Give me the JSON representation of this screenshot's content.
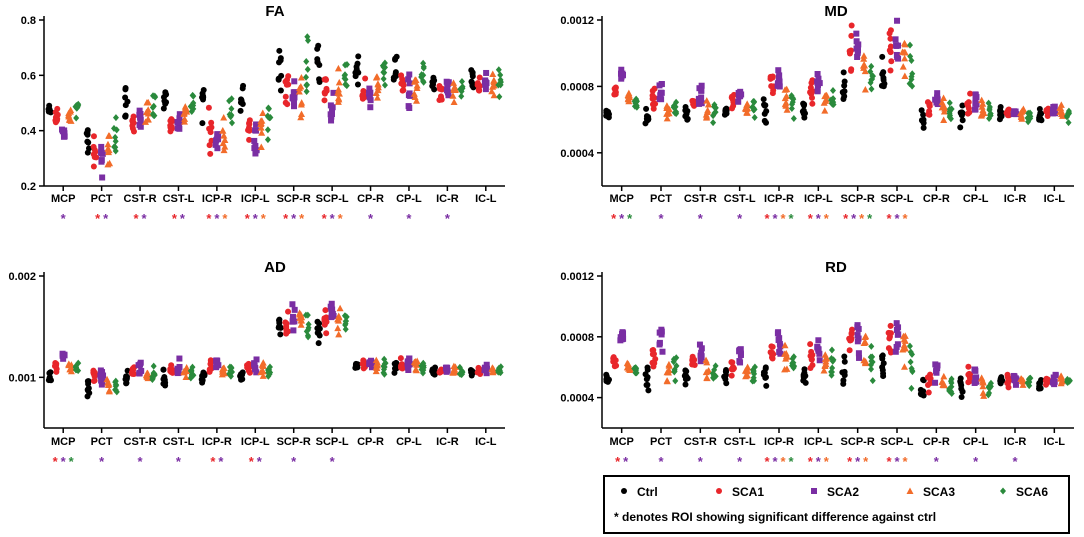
{
  "colors": {
    "Ctrl": "#000000",
    "SCA1": "#e8262b",
    "SCA2": "#7a2ea3",
    "SCA3": "#f26c2a",
    "SCA6": "#2a8a3c"
  },
  "groups": [
    "Ctrl",
    "SCA1",
    "SCA2",
    "SCA3",
    "SCA6"
  ],
  "legend": {
    "entries": [
      "Ctrl",
      "SCA1",
      "SCA2",
      "SCA3",
      "SCA6"
    ],
    "note": "* denotes ROI showing significant difference against ctrl"
  },
  "chart_data": [
    {
      "type": "scatter",
      "title": "FA",
      "categories": [
        "MCP",
        "PCT",
        "CST-R",
        "CST-L",
        "ICP-R",
        "ICP-L",
        "SCP-R",
        "SCP-L",
        "CP-R",
        "CP-L",
        "IC-R",
        "IC-L"
      ],
      "ylim": [
        0.2,
        0.8
      ],
      "yticks": [
        "0.2",
        "0.4",
        "0.6",
        "0.8"
      ],
      "tick_values": [
        0.2,
        0.4,
        0.6,
        0.8
      ],
      "centers": [
        [
          0.48,
          0.45,
          0.39,
          0.46,
          0.48
        ],
        [
          0.36,
          0.33,
          0.31,
          0.35,
          0.38
        ],
        [
          0.51,
          0.44,
          0.43,
          0.47,
          0.49
        ],
        [
          0.51,
          0.44,
          0.43,
          0.47,
          0.5
        ],
        [
          0.51,
          0.39,
          0.38,
          0.39,
          0.46
        ],
        [
          0.5,
          0.39,
          0.38,
          0.39,
          0.45
        ],
        [
          0.63,
          0.54,
          0.51,
          0.54,
          0.63
        ],
        [
          0.63,
          0.55,
          0.49,
          0.55,
          0.62
        ],
        [
          0.63,
          0.54,
          0.51,
          0.55,
          0.6
        ],
        [
          0.63,
          0.56,
          0.54,
          0.57,
          0.6
        ],
        [
          0.57,
          0.55,
          0.55,
          0.55,
          0.56
        ],
        [
          0.58,
          0.57,
          0.57,
          0.56,
          0.57
        ]
      ],
      "spreads": [
        0.02,
        0.05,
        0.04,
        0.03,
        0.06,
        0.05,
        0.06,
        0.06,
        0.05,
        0.04,
        0.03,
        0.03
      ],
      "stars": [
        [
          "SCA2"
        ],
        [
          "SCA1",
          "SCA2"
        ],
        [
          "SCA1",
          "SCA2"
        ],
        [
          "SCA1",
          "SCA2"
        ],
        [
          "SCA1",
          "SCA2",
          "SCA3"
        ],
        [
          "SCA1",
          "SCA2",
          "SCA3"
        ],
        [
          "SCA1",
          "SCA2",
          "SCA3"
        ],
        [
          "SCA1",
          "SCA2",
          "SCA3"
        ],
        [
          "SCA2"
        ],
        [
          "SCA2"
        ],
        [
          "SCA2"
        ],
        []
      ]
    },
    {
      "type": "scatter",
      "title": "MD",
      "categories": [
        "MCP",
        "PCT",
        "CST-R",
        "CST-L",
        "ICP-R",
        "ICP-L",
        "SCP-R",
        "SCP-L",
        "CP-R",
        "CP-L",
        "IC-R",
        "IC-L"
      ],
      "ylim": [
        0.0002,
        0.0012
      ],
      "yticks": [
        "0.0004",
        "0.0008",
        "0.0012"
      ],
      "tick_values": [
        0.0004,
        0.0008,
        0.0012
      ],
      "centers": [
        [
          0.00063,
          0.00078,
          0.00087,
          0.00074,
          0.00071
        ],
        [
          0.0006,
          0.00072,
          0.00078,
          0.00065,
          0.00067
        ],
        [
          0.00063,
          0.00072,
          0.00076,
          0.00066,
          0.00067
        ],
        [
          0.00063,
          0.00071,
          0.00077,
          0.00066,
          0.00068
        ],
        [
          0.00066,
          0.00079,
          0.00084,
          0.00072,
          0.0007
        ],
        [
          0.00066,
          0.00078,
          0.00082,
          0.00072,
          0.00071
        ],
        [
          0.00081,
          0.001,
          0.001,
          0.00092,
          0.00088
        ],
        [
          0.00086,
          0.00102,
          0.00103,
          0.00097,
          0.00092
        ],
        [
          0.0006,
          0.00067,
          0.00074,
          0.00066,
          0.00064
        ],
        [
          0.00063,
          0.00068,
          0.0007,
          0.00066,
          0.00064
        ],
        [
          0.00063,
          0.00064,
          0.00065,
          0.00064,
          0.00063
        ],
        [
          0.00062,
          0.00064,
          0.00065,
          0.00064,
          0.00063
        ]
      ],
      "spreads": [
        3e-05,
        6e-05,
        5e-05,
        5e-05,
        6e-05,
        5e-05,
        9e-05,
        0.0001,
        5e-05,
        5e-05,
        3e-05,
        3e-05
      ],
      "stars": [
        [
          "SCA1",
          "SCA2",
          "SCA6"
        ],
        [
          "SCA2"
        ],
        [
          "SCA2"
        ],
        [
          "SCA2"
        ],
        [
          "SCA1",
          "SCA2",
          "SCA3",
          "SCA6"
        ],
        [
          "SCA1",
          "SCA2",
          "SCA3"
        ],
        [
          "SCA1",
          "SCA2",
          "SCA3",
          "SCA6"
        ],
        [
          "SCA1",
          "SCA2",
          "SCA3"
        ],
        [],
        [],
        [],
        []
      ]
    },
    {
      "type": "scatter",
      "title": "AD",
      "categories": [
        "MCP",
        "PCT",
        "CST-R",
        "CST-L",
        "ICP-R",
        "ICP-L",
        "SCP-R",
        "SCP-L",
        "CP-R",
        "CP-L",
        "IC-R",
        "IC-L"
      ],
      "ylim": [
        0.0005,
        0.002
      ],
      "yticks": [
        "0.001",
        "0.002"
      ],
      "tick_values": [
        0.001,
        0.002
      ],
      "centers": [
        [
          0.001,
          0.00112,
          0.00122,
          0.0011,
          0.0011
        ],
        [
          0.0009,
          0.00098,
          0.00102,
          0.00094,
          0.00092
        ],
        [
          0.001,
          0.00107,
          0.0011,
          0.00103,
          0.00102
        ],
        [
          0.001,
          0.00107,
          0.0011,
          0.00104,
          0.00104
        ],
        [
          0.00101,
          0.0011,
          0.00113,
          0.00108,
          0.00107
        ],
        [
          0.00101,
          0.0011,
          0.00112,
          0.00108,
          0.00107
        ],
        [
          0.00145,
          0.00155,
          0.00158,
          0.00153,
          0.00152
        ],
        [
          0.0015,
          0.00162,
          0.00165,
          0.00158,
          0.00156
        ],
        [
          0.00112,
          0.00113,
          0.00114,
          0.00112,
          0.00111
        ],
        [
          0.0011,
          0.00112,
          0.00113,
          0.00112,
          0.0011
        ],
        [
          0.00106,
          0.00107,
          0.00108,
          0.00107,
          0.00106
        ],
        [
          0.00106,
          0.00108,
          0.00108,
          0.00107,
          0.00107
        ]
      ],
      "spreads": [
        4e-05,
        7e-05,
        6e-05,
        6e-05,
        5e-05,
        5e-05,
        0.0001,
        0.0001,
        5e-05,
        5e-05,
        3e-05,
        3e-05
      ],
      "stars": [
        [
          "SCA1",
          "SCA2",
          "SCA6"
        ],
        [
          "SCA2"
        ],
        [
          "SCA2"
        ],
        [
          "SCA2"
        ],
        [
          "SCA1",
          "SCA2"
        ],
        [
          "SCA1",
          "SCA2"
        ],
        [
          "SCA2"
        ],
        [
          "SCA2"
        ],
        [],
        [],
        [],
        []
      ]
    },
    {
      "type": "scatter",
      "title": "RD",
      "categories": [
        "MCP",
        "PCT",
        "CST-R",
        "CST-L",
        "ICP-R",
        "ICP-L",
        "SCP-R",
        "SCP-L",
        "CP-R",
        "CP-L",
        "IC-R",
        "IC-L"
      ],
      "ylim": [
        0.0002,
        0.0012
      ],
      "yticks": [
        "0.0004",
        "0.0008",
        "0.0012"
      ],
      "tick_values": [
        0.0004,
        0.0008,
        0.0012
      ],
      "centers": [
        [
          0.00053,
          0.00064,
          0.0008,
          0.0006,
          0.00058
        ],
        [
          0.00052,
          0.00068,
          0.00079,
          0.0006,
          0.00059
        ],
        [
          0.00054,
          0.00062,
          0.00068,
          0.00058,
          0.00057
        ],
        [
          0.00054,
          0.00061,
          0.00066,
          0.00058,
          0.00057
        ],
        [
          0.00053,
          0.00068,
          0.00074,
          0.00065,
          0.00062
        ],
        [
          0.00053,
          0.00068,
          0.00072,
          0.00064,
          0.00062
        ],
        [
          0.0006,
          0.00078,
          0.00082,
          0.0007,
          0.00062
        ],
        [
          0.00062,
          0.0008,
          0.00083,
          0.00074,
          0.00064
        ],
        [
          0.00045,
          0.00051,
          0.00056,
          0.0005,
          0.00048
        ],
        [
          0.00046,
          0.00052,
          0.00055,
          0.00049,
          0.00048
        ],
        [
          0.0005,
          0.00051,
          0.00052,
          0.00051,
          0.0005
        ],
        [
          0.0005,
          0.00052,
          0.00051,
          0.00051,
          0.0005
        ]
      ],
      "spreads": [
        3e-05,
        7e-05,
        5e-05,
        5e-05,
        6e-05,
        6e-05,
        0.0001,
        0.0001,
        5e-05,
        5e-05,
        3e-05,
        3e-05
      ],
      "stars": [
        [
          "SCA1",
          "SCA2"
        ],
        [
          "SCA2"
        ],
        [
          "SCA2"
        ],
        [
          "SCA2"
        ],
        [
          "SCA1",
          "SCA2",
          "SCA3",
          "SCA6"
        ],
        [
          "SCA1",
          "SCA2",
          "SCA3"
        ],
        [
          "SCA1",
          "SCA2",
          "SCA3"
        ],
        [
          "SCA1",
          "SCA2",
          "SCA3"
        ],
        [
          "SCA2"
        ],
        [
          "SCA2"
        ],
        [
          "SCA2"
        ],
        []
      ]
    }
  ]
}
